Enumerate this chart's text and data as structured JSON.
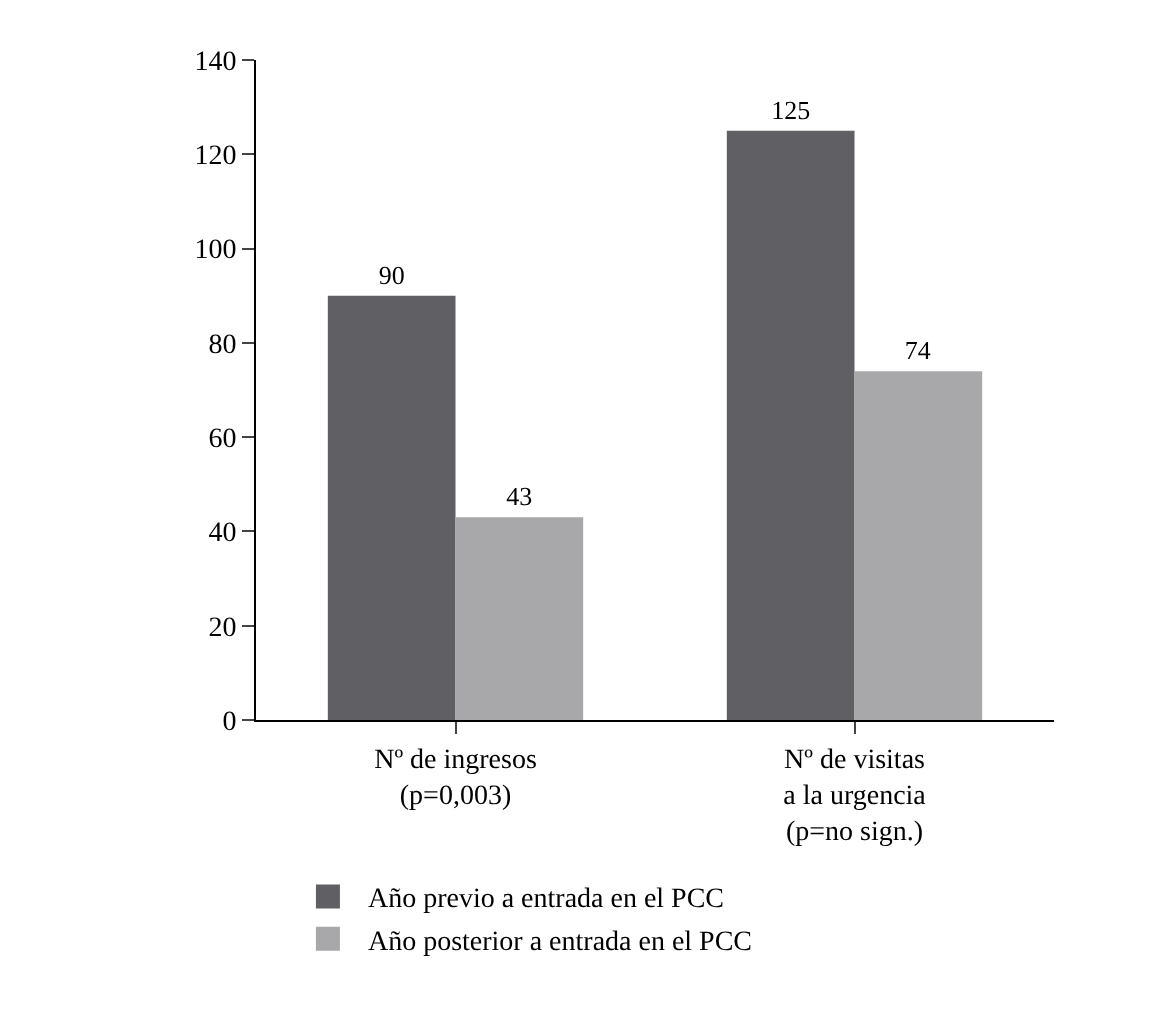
{
  "chart_data": {
    "type": "bar",
    "categories": [
      "Nº de ingresos\n(p=0,003)",
      "Nº de visitas\na la urgencia\n(p=no sign.)"
    ],
    "series": [
      {
        "name": "Año previo a entrada en el PCC",
        "color": "#606064",
        "values": [
          90,
          125
        ]
      },
      {
        "name": "Año posterior a entrada en el PCC",
        "color": "#a8a8aa",
        "values": [
          43,
          74
        ]
      }
    ],
    "ylim": [
      0,
      140
    ],
    "yticks": [
      0,
      20,
      40,
      60,
      80,
      100,
      120,
      140
    ],
    "legend": "bottom left",
    "data_labels": true
  }
}
